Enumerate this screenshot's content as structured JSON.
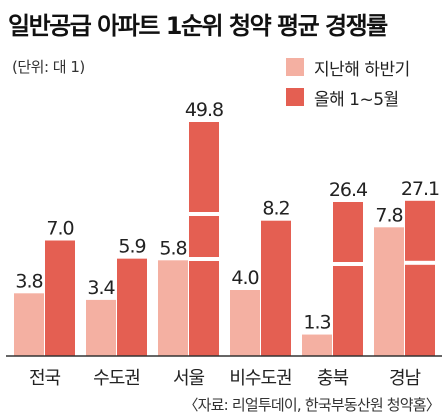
{
  "header": {
    "title": "일반공급 아파트 1순위 청약 평균 경쟁률",
    "unit": "(단위: 대 1)"
  },
  "footer": {
    "source": "〈자료: 리얼투데이, 한국부동산원 청약홈〉"
  },
  "colors": {
    "prev_half": "#f4b0a2",
    "this_year": "#e45f52",
    "axis": "#333333"
  },
  "chart_data": {
    "type": "bar",
    "title": "일반공급 아파트 1순위 청약 평균 경쟁률",
    "unit": "(단위: 대 1)",
    "categories": [
      "전국",
      "수도권",
      "서울",
      "비수도권",
      "충북",
      "경남"
    ],
    "series": [
      {
        "name": "지난해 하반기",
        "values": [
          3.8,
          3.4,
          5.8,
          4.0,
          1.3,
          7.8
        ],
        "labels": [
          "3.8",
          "3.4",
          "5.8",
          "4.0",
          "1.3",
          "7.8"
        ]
      },
      {
        "name": "올해 1~5월",
        "values": [
          7.0,
          5.9,
          49.8,
          8.2,
          26.4,
          27.1
        ],
        "labels": [
          "7.0",
          "5.9",
          "49.8",
          "8.2",
          "26.4",
          "27.1"
        ]
      }
    ],
    "axis_break": true,
    "grid": false,
    "legend": "top-right"
  }
}
